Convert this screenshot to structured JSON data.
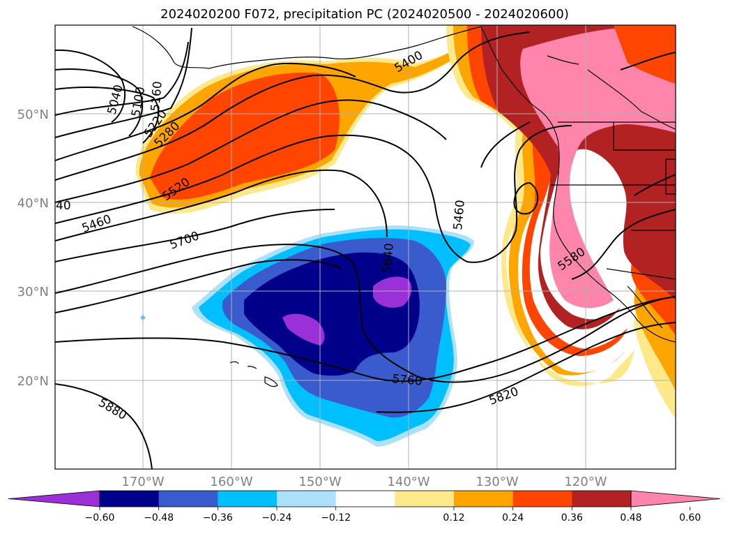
{
  "title": "2024020200 F072, precipitation PC (2024020500 - 2024020600)",
  "map": {
    "lat_labels": [
      "50°N",
      "40°N",
      "30°N",
      "20°N"
    ],
    "lon_labels": [
      "170°W",
      "160°W",
      "150°W",
      "140°W",
      "130°W",
      "120°W"
    ],
    "partial_left_label": "40",
    "contour_labels": [
      "5040",
      "5100",
      "5160",
      "5220",
      "5280",
      "5400",
      "5520",
      "5460",
      "5700",
      "5640",
      "5460",
      "5580",
      "5760",
      "5820",
      "5880"
    ],
    "colors": {
      "land_outline": "#000000",
      "contour": "#000000",
      "grid": "#b0b0b0",
      "neg_strong": "#9b30d9",
      "neg_dark": "#00008b",
      "neg_mid": "#3a5bcd",
      "neg_light": "#00bfff",
      "neg_pale": "#ade0fb",
      "neutral": "#ffffff",
      "pos_pale": "#fde98a",
      "pos_light": "#ffa500",
      "pos_mid": "#ff4500",
      "pos_dark": "#b22222",
      "pos_strong": "#ff85ad"
    }
  },
  "colorbar": {
    "ticks": [
      "−0.60",
      "−0.48",
      "−0.36",
      "−0.24",
      "−0.12",
      "0.12",
      "0.24",
      "0.36",
      "0.48",
      "0.60"
    ],
    "colors": [
      "#9b30d9",
      "#00008b",
      "#3a5bcd",
      "#00bfff",
      "#ade0fb",
      "#ffffff",
      "#fde98a",
      "#ffa500",
      "#ff4500",
      "#b22222",
      "#ff85ad"
    ]
  }
}
